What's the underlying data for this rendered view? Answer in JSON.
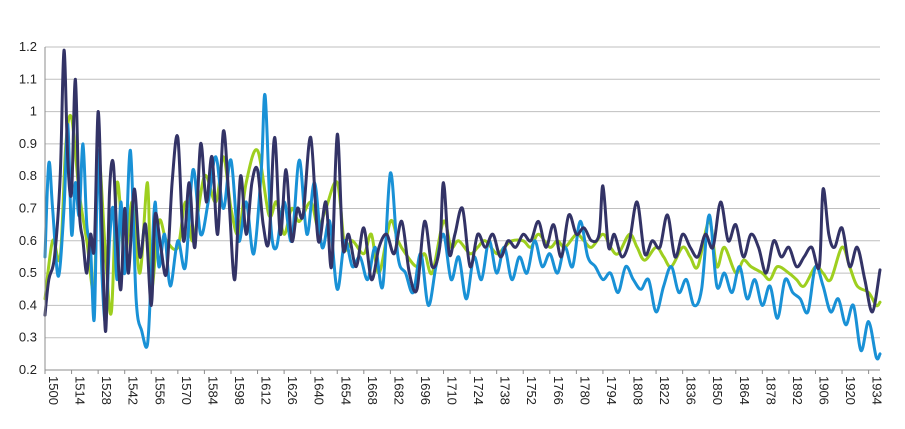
{
  "chart_data": {
    "type": "line",
    "title": "",
    "xlabel": "",
    "ylabel": "",
    "xlim": [
      1500,
      1940
    ],
    "ylim": [
      0.2,
      1.2
    ],
    "grid": true,
    "legend": "none",
    "y_ticks": [
      "0.2",
      "0.3",
      "0.4",
      "0.5",
      "0.6",
      "0.7",
      "0.8",
      "0.9",
      "1",
      "1.1",
      "1.2"
    ],
    "x_ticks": [
      "1500",
      "1514",
      "1528",
      "1542",
      "1556",
      "1570",
      "1584",
      "1598",
      "1612",
      "1626",
      "1640",
      "1654",
      "1668",
      "1682",
      "1696",
      "1710",
      "1724",
      "1738",
      "1752",
      "1766",
      "1780",
      "1794",
      "1808",
      "1822",
      "1836",
      "1850",
      "1864",
      "1878",
      "1892",
      "1906",
      "1920",
      "1934"
    ],
    "series": [
      {
        "color": "#9ecf1f",
        "x": [
          1500,
          1504,
          1508,
          1511,
          1514,
          1518,
          1522,
          1526,
          1528,
          1532,
          1535,
          1538,
          1542,
          1546,
          1550,
          1554,
          1556,
          1560,
          1564,
          1570,
          1574,
          1578,
          1584,
          1590,
          1594,
          1598,
          1602,
          1606,
          1612,
          1618,
          1622,
          1626,
          1630,
          1634,
          1640,
          1644,
          1648,
          1654,
          1658,
          1662,
          1668,
          1672,
          1676,
          1682,
          1686,
          1690,
          1696,
          1700,
          1704,
          1710,
          1714,
          1718,
          1724,
          1728,
          1732,
          1738,
          1742,
          1746,
          1752,
          1756,
          1760,
          1766,
          1770,
          1774,
          1780,
          1784,
          1788,
          1794,
          1798,
          1802,
          1808,
          1812,
          1816,
          1822,
          1826,
          1830,
          1836,
          1840,
          1844,
          1850,
          1854,
          1858,
          1864,
          1868,
          1872,
          1878,
          1882,
          1886,
          1892,
          1896,
          1900,
          1906,
          1910,
          1914,
          1920,
          1924,
          1928,
          1934,
          1938,
          1940
        ],
        "y": [
          0.42,
          0.6,
          0.55,
          0.9,
          0.98,
          0.75,
          0.6,
          0.45,
          0.88,
          0.55,
          0.38,
          0.78,
          0.55,
          0.72,
          0.5,
          0.78,
          0.45,
          0.66,
          0.6,
          0.58,
          0.72,
          0.6,
          0.8,
          0.72,
          0.86,
          0.7,
          0.62,
          0.78,
          0.88,
          0.68,
          0.72,
          0.62,
          0.7,
          0.66,
          0.72,
          0.64,
          0.7,
          0.78,
          0.58,
          0.6,
          0.56,
          0.62,
          0.5,
          0.66,
          0.6,
          0.56,
          0.52,
          0.56,
          0.5,
          0.66,
          0.58,
          0.6,
          0.56,
          0.58,
          0.6,
          0.56,
          0.58,
          0.6,
          0.6,
          0.58,
          0.62,
          0.58,
          0.6,
          0.58,
          0.62,
          0.6,
          0.58,
          0.62,
          0.58,
          0.56,
          0.62,
          0.58,
          0.54,
          0.58,
          0.55,
          0.52,
          0.58,
          0.55,
          0.52,
          0.66,
          0.52,
          0.58,
          0.5,
          0.54,
          0.52,
          0.5,
          0.48,
          0.52,
          0.5,
          0.48,
          0.46,
          0.52,
          0.5,
          0.48,
          0.58,
          0.52,
          0.46,
          0.44,
          0.4,
          0.41
        ]
      },
      {
        "color": "#1991d6",
        "x": [
          1500,
          1502,
          1504,
          1507,
          1510,
          1512,
          1514,
          1516,
          1518,
          1520,
          1522,
          1524,
          1526,
          1528,
          1530,
          1532,
          1534,
          1536,
          1538,
          1540,
          1542,
          1545,
          1548,
          1551,
          1554,
          1556,
          1558,
          1560,
          1563,
          1566,
          1570,
          1574,
          1578,
          1582,
          1586,
          1590,
          1594,
          1598,
          1602,
          1606,
          1610,
          1614,
          1616,
          1619,
          1622,
          1626,
          1630,
          1634,
          1638,
          1642,
          1646,
          1650,
          1654,
          1658,
          1662,
          1666,
          1670,
          1674,
          1678,
          1682,
          1686,
          1690,
          1694,
          1698,
          1702,
          1706,
          1710,
          1714,
          1718,
          1722,
          1726,
          1730,
          1734,
          1738,
          1742,
          1746,
          1750,
          1754,
          1758,
          1762,
          1766,
          1770,
          1774,
          1778,
          1782,
          1786,
          1790,
          1794,
          1798,
          1802,
          1806,
          1810,
          1814,
          1818,
          1822,
          1826,
          1830,
          1834,
          1838,
          1842,
          1846,
          1850,
          1854,
          1858,
          1862,
          1866,
          1870,
          1874,
          1878,
          1882,
          1886,
          1890,
          1894,
          1898,
          1902,
          1906,
          1910,
          1914,
          1918,
          1922,
          1926,
          1930,
          1934,
          1938,
          1940
        ],
        "y": [
          0.55,
          0.84,
          0.7,
          0.49,
          0.7,
          0.96,
          0.62,
          0.78,
          0.68,
          0.9,
          0.65,
          0.58,
          0.36,
          0.88,
          0.5,
          0.35,
          0.6,
          0.7,
          0.48,
          0.72,
          0.5,
          0.88,
          0.42,
          0.32,
          0.28,
          0.5,
          0.72,
          0.52,
          0.62,
          0.46,
          0.6,
          0.52,
          0.82,
          0.62,
          0.72,
          0.86,
          0.7,
          0.85,
          0.6,
          0.72,
          0.56,
          0.82,
          1.05,
          0.65,
          0.58,
          0.72,
          0.6,
          0.85,
          0.62,
          0.78,
          0.58,
          0.66,
          0.45,
          0.6,
          0.52,
          0.55,
          0.48,
          0.58,
          0.46,
          0.81,
          0.55,
          0.5,
          0.44,
          0.56,
          0.4,
          0.52,
          0.62,
          0.48,
          0.55,
          0.42,
          0.55,
          0.48,
          0.6,
          0.5,
          0.58,
          0.48,
          0.55,
          0.5,
          0.6,
          0.52,
          0.56,
          0.5,
          0.58,
          0.52,
          0.66,
          0.55,
          0.52,
          0.48,
          0.5,
          0.44,
          0.52,
          0.48,
          0.45,
          0.48,
          0.38,
          0.46,
          0.52,
          0.44,
          0.48,
          0.4,
          0.45,
          0.68,
          0.46,
          0.5,
          0.44,
          0.52,
          0.42,
          0.48,
          0.4,
          0.46,
          0.36,
          0.48,
          0.44,
          0.42,
          0.38,
          0.52,
          0.46,
          0.38,
          0.42,
          0.34,
          0.4,
          0.26,
          0.35,
          0.24,
          0.25
        ]
      },
      {
        "color": "#333366",
        "x": [
          1500,
          1502,
          1505,
          1508,
          1510,
          1512,
          1514,
          1516,
          1518,
          1520,
          1522,
          1524,
          1526,
          1528,
          1530,
          1532,
          1534,
          1536,
          1538,
          1540,
          1542,
          1544,
          1547,
          1550,
          1553,
          1556,
          1558,
          1561,
          1564,
          1567,
          1570,
          1573,
          1576,
          1579,
          1582,
          1585,
          1588,
          1591,
          1594,
          1597,
          1600,
          1603,
          1606,
          1609,
          1612,
          1615,
          1618,
          1621,
          1624,
          1627,
          1630,
          1633,
          1636,
          1640,
          1644,
          1648,
          1651,
          1654,
          1657,
          1660,
          1664,
          1668,
          1672,
          1676,
          1680,
          1684,
          1688,
          1692,
          1696,
          1700,
          1704,
          1708,
          1710,
          1713,
          1716,
          1720,
          1724,
          1728,
          1732,
          1736,
          1740,
          1744,
          1748,
          1752,
          1756,
          1760,
          1764,
          1768,
          1772,
          1776,
          1780,
          1784,
          1788,
          1792,
          1794,
          1797,
          1800,
          1804,
          1808,
          1812,
          1816,
          1820,
          1824,
          1828,
          1832,
          1836,
          1840,
          1844,
          1848,
          1852,
          1856,
          1860,
          1864,
          1868,
          1872,
          1876,
          1880,
          1884,
          1888,
          1892,
          1896,
          1900,
          1904,
          1908,
          1910,
          1913,
          1916,
          1920,
          1924,
          1928,
          1932,
          1936,
          1940
        ],
        "y": [
          0.37,
          0.48,
          0.55,
          0.8,
          1.19,
          0.85,
          0.75,
          1.1,
          0.7,
          0.6,
          0.5,
          0.62,
          0.58,
          1.0,
          0.65,
          0.32,
          0.75,
          0.84,
          0.6,
          0.45,
          0.7,
          0.5,
          0.76,
          0.55,
          0.65,
          0.4,
          0.68,
          0.58,
          0.5,
          0.78,
          0.92,
          0.6,
          0.78,
          0.58,
          0.9,
          0.72,
          0.86,
          0.62,
          0.94,
          0.72,
          0.48,
          0.8,
          0.62,
          0.78,
          0.82,
          0.65,
          0.6,
          0.92,
          0.62,
          0.82,
          0.6,
          0.7,
          0.68,
          0.92,
          0.6,
          0.72,
          0.52,
          0.93,
          0.58,
          0.62,
          0.52,
          0.64,
          0.48,
          0.58,
          0.62,
          0.56,
          0.66,
          0.5,
          0.45,
          0.66,
          0.52,
          0.58,
          0.78,
          0.56,
          0.62,
          0.7,
          0.52,
          0.62,
          0.58,
          0.62,
          0.55,
          0.6,
          0.58,
          0.62,
          0.6,
          0.66,
          0.58,
          0.65,
          0.55,
          0.68,
          0.62,
          0.64,
          0.6,
          0.62,
          0.77,
          0.58,
          0.62,
          0.55,
          0.6,
          0.72,
          0.56,
          0.6,
          0.58,
          0.68,
          0.55,
          0.62,
          0.58,
          0.55,
          0.62,
          0.58,
          0.72,
          0.6,
          0.65,
          0.55,
          0.62,
          0.58,
          0.5,
          0.6,
          0.55,
          0.58,
          0.52,
          0.55,
          0.58,
          0.52,
          0.76,
          0.62,
          0.58,
          0.64,
          0.52,
          0.58,
          0.48,
          0.38,
          0.51
        ]
      }
    ]
  }
}
